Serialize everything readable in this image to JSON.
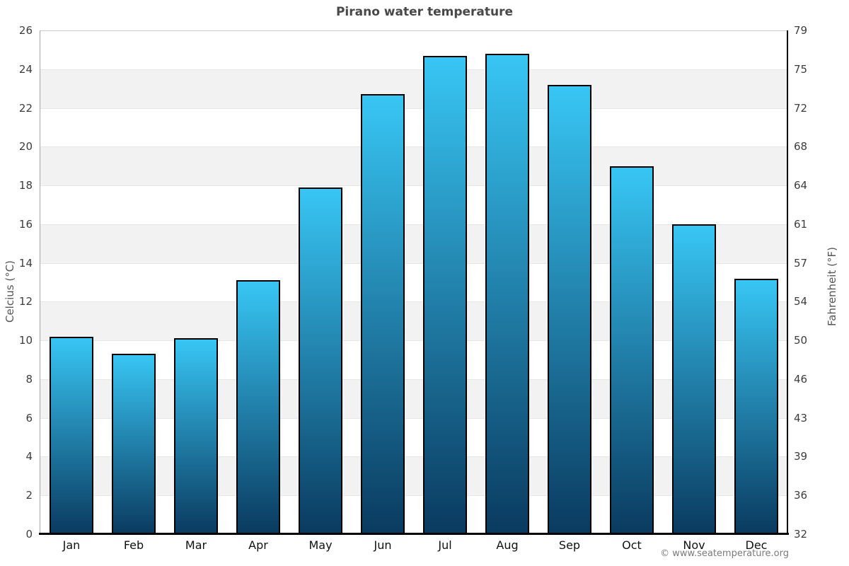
{
  "chart_data": {
    "type": "bar",
    "title": "Pirano water temperature",
    "categories": [
      "Jan",
      "Feb",
      "Mar",
      "Apr",
      "May",
      "Jun",
      "Jul",
      "Aug",
      "Sep",
      "Oct",
      "Nov",
      "Dec"
    ],
    "values": [
      10.2,
      9.3,
      10.1,
      13.1,
      17.9,
      22.7,
      24.7,
      24.8,
      23.2,
      19.0,
      16.0,
      13.2
    ],
    "ylabel_left": "Celcius (°C)",
    "ylabel_right": "Fahrenheit (°F)",
    "xlabel": "",
    "ylim_celsius": [
      0,
      26
    ],
    "yticks_celsius": [
      0,
      2,
      4,
      6,
      8,
      10,
      12,
      14,
      16,
      18,
      20,
      22,
      24,
      26
    ],
    "yticks_fahrenheit": [
      "32",
      "36",
      "39",
      "43",
      "46",
      "50",
      "54",
      "57",
      "61",
      "64",
      "68",
      "72",
      "75",
      "79"
    ],
    "grid": "alternating horizontal bands, gridline at every 2°C",
    "legend": "none",
    "colors": {
      "bar_gradient_top": "#38c6f4",
      "bar_gradient_bottom": "#0a3a5f",
      "bar_border": "#000000",
      "band_fill": "#f2f2f2",
      "gridline": "#e6e6e6",
      "top_border_line": "#cccccc",
      "left_axis_line": "#a6a6a6",
      "dark_axis_line": "#000000",
      "title_text": "#484848",
      "tick_text": "#3d3d3d",
      "month_text": "#111111",
      "axis_title_text": "#565656",
      "footer_text": "#7a7a7a"
    }
  },
  "footer": {
    "attribution": "© www.seatemperature.org"
  }
}
